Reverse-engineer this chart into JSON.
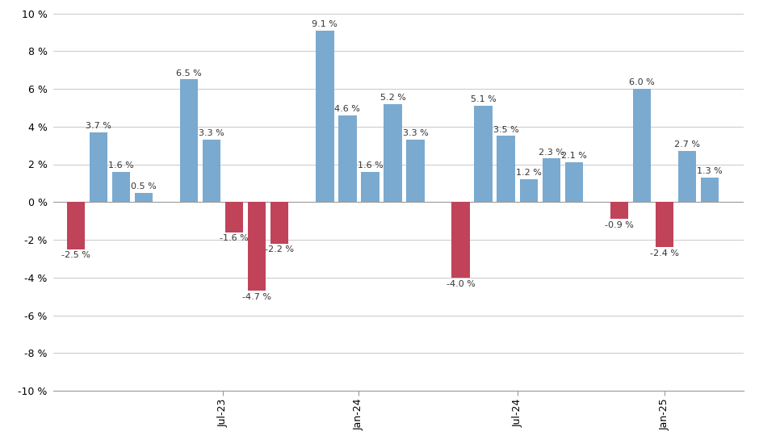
{
  "bars": [
    {
      "x": 1,
      "value": -2.5,
      "color": "#c0435a"
    },
    {
      "x": 2,
      "value": 3.7,
      "color": "#7aaad0"
    },
    {
      "x": 3,
      "value": 1.6,
      "color": "#7aaad0"
    },
    {
      "x": 4,
      "value": 0.5,
      "color": "#7aaad0"
    },
    {
      "x": 6,
      "value": 6.5,
      "color": "#7aaad0"
    },
    {
      "x": 7,
      "value": 3.3,
      "color": "#7aaad0"
    },
    {
      "x": 8,
      "value": -1.6,
      "color": "#c0435a"
    },
    {
      "x": 9,
      "value": -4.7,
      "color": "#c0435a"
    },
    {
      "x": 10,
      "value": -2.2,
      "color": "#c0435a"
    },
    {
      "x": 12,
      "value": 9.1,
      "color": "#7aaad0"
    },
    {
      "x": 13,
      "value": 4.6,
      "color": "#7aaad0"
    },
    {
      "x": 14,
      "value": 1.6,
      "color": "#7aaad0"
    },
    {
      "x": 15,
      "value": 5.2,
      "color": "#7aaad0"
    },
    {
      "x": 16,
      "value": 3.3,
      "color": "#7aaad0"
    },
    {
      "x": 18,
      "value": -4.0,
      "color": "#c0435a"
    },
    {
      "x": 19,
      "value": 5.1,
      "color": "#7aaad0"
    },
    {
      "x": 20,
      "value": 3.5,
      "color": "#7aaad0"
    },
    {
      "x": 21,
      "value": 1.2,
      "color": "#7aaad0"
    },
    {
      "x": 22,
      "value": 2.3,
      "color": "#7aaad0"
    },
    {
      "x": 23,
      "value": 2.1,
      "color": "#7aaad0"
    },
    {
      "x": 25,
      "value": -0.9,
      "color": "#c0435a"
    },
    {
      "x": 26,
      "value": 6.0,
      "color": "#7aaad0"
    },
    {
      "x": 27,
      "value": -2.4,
      "color": "#c0435a"
    },
    {
      "x": 28,
      "value": 2.7,
      "color": "#7aaad0"
    },
    {
      "x": 29,
      "value": 1.3,
      "color": "#7aaad0"
    }
  ],
  "xtick_positions": [
    7.5,
    13.5,
    20.5,
    27
  ],
  "xtick_labels": [
    "Jul-23",
    "Jan-24",
    "Jul-24",
    "Jan-25"
  ],
  "ylim": [
    -10,
    10
  ],
  "ytick_vals": [
    -10,
    -8,
    -6,
    -4,
    -2,
    0,
    2,
    4,
    6,
    8,
    10
  ],
  "bar_width": 0.8,
  "background_color": "#ffffff",
  "grid_color": "#c8c8c8",
  "label_color": "#333333",
  "label_fontsize": 8.0
}
